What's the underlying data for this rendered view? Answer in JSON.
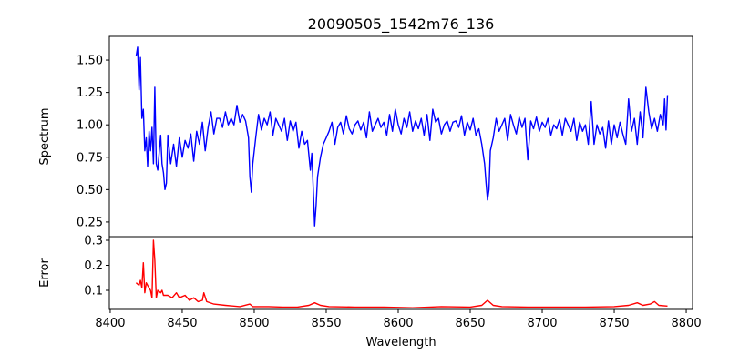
{
  "chart_data": [
    {
      "type": "line",
      "title": "20090505_1542m76_136",
      "xlabel": "",
      "ylabel": "Spectrum",
      "xlim": [
        8399.4,
        8804.4
      ],
      "ylim": [
        0.137,
        1.683
      ],
      "xticks": [
        8400,
        8450,
        8500,
        8550,
        8600,
        8650,
        8700,
        8750,
        8800
      ],
      "yticks": [
        0.25,
        0.5,
        0.75,
        1.0,
        1.25,
        1.5
      ],
      "ytick_labels": [
        "0.25",
        "0.50",
        "0.75",
        "1.00",
        "1.25",
        "1.50"
      ],
      "color": "#0000ff",
      "points": [
        [
          8418,
          1.53
        ],
        [
          8419,
          1.6
        ],
        [
          8420,
          1.27
        ],
        [
          8421,
          1.52
        ],
        [
          8422,
          1.05
        ],
        [
          8423,
          1.12
        ],
        [
          8424,
          0.8
        ],
        [
          8425,
          0.9
        ],
        [
          8426,
          0.68
        ],
        [
          8427,
          0.95
        ],
        [
          8428,
          0.8
        ],
        [
          8429,
          0.98
        ],
        [
          8430,
          0.7
        ],
        [
          8431,
          1.29
        ],
        [
          8432,
          0.7
        ],
        [
          8433,
          0.65
        ],
        [
          8435,
          0.92
        ],
        [
          8436,
          0.7
        ],
        [
          8437,
          0.63
        ],
        [
          8438,
          0.5
        ],
        [
          8439,
          0.55
        ],
        [
          8440,
          0.92
        ],
        [
          8442,
          0.7
        ],
        [
          8444,
          0.85
        ],
        [
          8446,
          0.68
        ],
        [
          8448,
          0.9
        ],
        [
          8450,
          0.75
        ],
        [
          8452,
          0.88
        ],
        [
          8454,
          0.82
        ],
        [
          8456,
          0.93
        ],
        [
          8458,
          0.72
        ],
        [
          8460,
          0.95
        ],
        [
          8462,
          0.85
        ],
        [
          8464,
          1.02
        ],
        [
          8466,
          0.8
        ],
        [
          8468,
          0.98
        ],
        [
          8470,
          1.1
        ],
        [
          8472,
          0.93
        ],
        [
          8474,
          1.05
        ],
        [
          8476,
          1.05
        ],
        [
          8478,
          0.98
        ],
        [
          8480,
          1.1
        ],
        [
          8482,
          1.0
        ],
        [
          8484,
          1.05
        ],
        [
          8486,
          1.0
        ],
        [
          8488,
          1.15
        ],
        [
          8490,
          1.02
        ],
        [
          8492,
          1.08
        ],
        [
          8494,
          1.03
        ],
        [
          8496,
          0.9
        ],
        [
          8497,
          0.6
        ],
        [
          8498,
          0.48
        ],
        [
          8499,
          0.7
        ],
        [
          8501,
          0.9
        ],
        [
          8503,
          1.08
        ],
        [
          8505,
          0.96
        ],
        [
          8507,
          1.05
        ],
        [
          8509,
          1.0
        ],
        [
          8511,
          1.1
        ],
        [
          8513,
          0.92
        ],
        [
          8515,
          1.05
        ],
        [
          8517,
          1.0
        ],
        [
          8519,
          0.95
        ],
        [
          8521,
          1.05
        ],
        [
          8523,
          0.88
        ],
        [
          8525,
          1.03
        ],
        [
          8527,
          0.95
        ],
        [
          8529,
          1.02
        ],
        [
          8531,
          0.82
        ],
        [
          8533,
          0.95
        ],
        [
          8535,
          0.85
        ],
        [
          8537,
          0.88
        ],
        [
          8539,
          0.65
        ],
        [
          8540,
          0.78
        ],
        [
          8541,
          0.5
        ],
        [
          8542,
          0.22
        ],
        [
          8543,
          0.38
        ],
        [
          8544,
          0.6
        ],
        [
          8546,
          0.75
        ],
        [
          8548,
          0.85
        ],
        [
          8550,
          0.9
        ],
        [
          8552,
          0.95
        ],
        [
          8554,
          1.02
        ],
        [
          8556,
          0.85
        ],
        [
          8558,
          0.98
        ],
        [
          8560,
          1.02
        ],
        [
          8562,
          0.93
        ],
        [
          8564,
          1.07
        ],
        [
          8566,
          0.97
        ],
        [
          8568,
          0.93
        ],
        [
          8570,
          1.0
        ],
        [
          8572,
          1.03
        ],
        [
          8574,
          0.96
        ],
        [
          8576,
          1.02
        ],
        [
          8578,
          0.9
        ],
        [
          8580,
          1.1
        ],
        [
          8582,
          0.95
        ],
        [
          8584,
          1.0
        ],
        [
          8586,
          1.05
        ],
        [
          8588,
          0.98
        ],
        [
          8590,
          1.02
        ],
        [
          8592,
          0.92
        ],
        [
          8594,
          1.08
        ],
        [
          8596,
          0.95
        ],
        [
          8598,
          1.12
        ],
        [
          8600,
          1.0
        ],
        [
          8602,
          0.93
        ],
        [
          8604,
          1.05
        ],
        [
          8606,
          0.98
        ],
        [
          8608,
          1.1
        ],
        [
          8610,
          0.95
        ],
        [
          8612,
          1.03
        ],
        [
          8614,
          0.97
        ],
        [
          8616,
          1.05
        ],
        [
          8618,
          0.92
        ],
        [
          8620,
          1.08
        ],
        [
          8622,
          0.88
        ],
        [
          8624,
          1.12
        ],
        [
          8626,
          1.02
        ],
        [
          8628,
          1.05
        ],
        [
          8630,
          0.93
        ],
        [
          8632,
          1.0
        ],
        [
          8634,
          1.03
        ],
        [
          8636,
          0.95
        ],
        [
          8638,
          1.02
        ],
        [
          8640,
          1.03
        ],
        [
          8642,
          0.98
        ],
        [
          8644,
          1.07
        ],
        [
          8646,
          0.92
        ],
        [
          8648,
          1.02
        ],
        [
          8650,
          0.96
        ],
        [
          8652,
          1.05
        ],
        [
          8654,
          0.92
        ],
        [
          8656,
          0.97
        ],
        [
          8658,
          0.85
        ],
        [
          8660,
          0.7
        ],
        [
          8661,
          0.55
        ],
        [
          8662,
          0.42
        ],
        [
          8663,
          0.5
        ],
        [
          8664,
          0.8
        ],
        [
          8666,
          0.9
        ],
        [
          8668,
          1.05
        ],
        [
          8670,
          0.95
        ],
        [
          8672,
          1.0
        ],
        [
          8674,
          1.05
        ],
        [
          8676,
          0.88
        ],
        [
          8678,
          1.08
        ],
        [
          8680,
          1.0
        ],
        [
          8682,
          0.93
        ],
        [
          8684,
          1.06
        ],
        [
          8686,
          0.98
        ],
        [
          8688,
          1.05
        ],
        [
          8690,
          0.73
        ],
        [
          8692,
          1.03
        ],
        [
          8694,
          0.97
        ],
        [
          8696,
          1.06
        ],
        [
          8698,
          0.95
        ],
        [
          8700,
          1.02
        ],
        [
          8702,
          0.98
        ],
        [
          8704,
          1.05
        ],
        [
          8706,
          0.92
        ],
        [
          8708,
          1.0
        ],
        [
          8710,
          0.97
        ],
        [
          8712,
          1.04
        ],
        [
          8714,
          0.92
        ],
        [
          8716,
          1.05
        ],
        [
          8718,
          1.0
        ],
        [
          8720,
          0.95
        ],
        [
          8722,
          1.05
        ],
        [
          8724,
          0.88
        ],
        [
          8726,
          1.02
        ],
        [
          8728,
          0.95
        ],
        [
          8730,
          1.0
        ],
        [
          8732,
          0.85
        ],
        [
          8734,
          1.18
        ],
        [
          8736,
          0.85
        ],
        [
          8738,
          1.0
        ],
        [
          8740,
          0.93
        ],
        [
          8742,
          0.98
        ],
        [
          8744,
          0.82
        ],
        [
          8746,
          1.03
        ],
        [
          8748,
          0.85
        ],
        [
          8750,
          1.0
        ],
        [
          8752,
          0.9
        ],
        [
          8754,
          1.02
        ],
        [
          8756,
          0.93
        ],
        [
          8758,
          0.85
        ],
        [
          8760,
          1.2
        ],
        [
          8762,
          0.95
        ],
        [
          8764,
          1.05
        ],
        [
          8766,
          0.85
        ],
        [
          8768,
          1.1
        ],
        [
          8770,
          0.9
        ],
        [
          8772,
          1.29
        ],
        [
          8774,
          1.1
        ],
        [
          8776,
          0.97
        ],
        [
          8778,
          1.05
        ],
        [
          8780,
          0.95
        ],
        [
          8782,
          1.08
        ],
        [
          8784,
          1.0
        ],
        [
          8785,
          1.2
        ],
        [
          8786,
          0.96
        ],
        [
          8787,
          1.23
        ]
      ]
    },
    {
      "type": "line",
      "title": "",
      "xlabel": "Wavelength",
      "ylabel": "Error",
      "xlim": [
        8399.4,
        8804.4
      ],
      "ylim": [
        0.0236,
        0.3145
      ],
      "xticks": [
        8400,
        8450,
        8500,
        8550,
        8600,
        8650,
        8700,
        8750,
        8800
      ],
      "xtick_labels": [
        "8400",
        "8450",
        "8500",
        "8550",
        "8600",
        "8650",
        "8700",
        "8750",
        "8800"
      ],
      "yticks": [
        0.1,
        0.2,
        0.3
      ],
      "ytick_labels": [
        "0.1",
        "0.2",
        "0.3"
      ],
      "color": "#ff0000",
      "points": [
        [
          8418,
          0.13
        ],
        [
          8420,
          0.12
        ],
        [
          8421,
          0.14
        ],
        [
          8422,
          0.11
        ],
        [
          8423,
          0.21
        ],
        [
          8424,
          0.09
        ],
        [
          8425,
          0.13
        ],
        [
          8426,
          0.12
        ],
        [
          8428,
          0.1
        ],
        [
          8429,
          0.07
        ],
        [
          8430,
          0.3
        ],
        [
          8431,
          0.22
        ],
        [
          8432,
          0.07
        ],
        [
          8433,
          0.1
        ],
        [
          8435,
          0.09
        ],
        [
          8436,
          0.1
        ],
        [
          8437,
          0.08
        ],
        [
          8440,
          0.08
        ],
        [
          8443,
          0.07
        ],
        [
          8446,
          0.09
        ],
        [
          8448,
          0.07
        ],
        [
          8452,
          0.08
        ],
        [
          8455,
          0.06
        ],
        [
          8458,
          0.07
        ],
        [
          8461,
          0.055
        ],
        [
          8464,
          0.06
        ],
        [
          8465,
          0.09
        ],
        [
          8467,
          0.055
        ],
        [
          8472,
          0.045
        ],
        [
          8480,
          0.04
        ],
        [
          8490,
          0.035
        ],
        [
          8497,
          0.045
        ],
        [
          8499,
          0.035
        ],
        [
          8510,
          0.035
        ],
        [
          8520,
          0.033
        ],
        [
          8530,
          0.033
        ],
        [
          8538,
          0.04
        ],
        [
          8542,
          0.05
        ],
        [
          8546,
          0.04
        ],
        [
          8552,
          0.035
        ],
        [
          8570,
          0.033
        ],
        [
          8590,
          0.033
        ],
        [
          8610,
          0.03
        ],
        [
          8630,
          0.035
        ],
        [
          8650,
          0.033
        ],
        [
          8658,
          0.04
        ],
        [
          8662,
          0.06
        ],
        [
          8666,
          0.04
        ],
        [
          8672,
          0.035
        ],
        [
          8690,
          0.033
        ],
        [
          8710,
          0.033
        ],
        [
          8730,
          0.033
        ],
        [
          8750,
          0.035
        ],
        [
          8760,
          0.04
        ],
        [
          8766,
          0.05
        ],
        [
          8770,
          0.04
        ],
        [
          8775,
          0.045
        ],
        [
          8778,
          0.055
        ],
        [
          8781,
          0.04
        ],
        [
          8787,
          0.037
        ]
      ]
    }
  ]
}
